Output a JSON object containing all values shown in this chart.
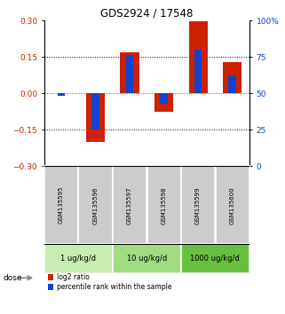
{
  "title": "GDS2924 / 17548",
  "samples": [
    "GSM135595",
    "GSM135596",
    "GSM135597",
    "GSM135598",
    "GSM135599",
    "GSM135600"
  ],
  "log2_ratio": [
    0.0,
    -0.2,
    0.17,
    -0.075,
    0.295,
    0.13
  ],
  "percentile_rank": [
    48,
    25,
    76,
    43,
    80,
    62
  ],
  "dose_groups": [
    {
      "label": "1 ug/kg/d",
      "color": "#c8edb0",
      "indices": [
        0,
        1
      ]
    },
    {
      "label": "10 ug/kg/d",
      "color": "#a0dc80",
      "indices": [
        2,
        3
      ]
    },
    {
      "label": "1000 ug/kg/d",
      "color": "#68c040",
      "indices": [
        4,
        5
      ]
    }
  ],
  "bar_color_red": "#cc2200",
  "bar_color_blue": "#1144cc",
  "ylim_left": [
    -0.3,
    0.3
  ],
  "ylim_right": [
    0,
    100
  ],
  "yticks_left": [
    -0.3,
    -0.15,
    0.0,
    0.15,
    0.3
  ],
  "yticks_right": [
    0,
    25,
    50,
    75,
    100
  ],
  "ytick_labels_right": [
    "0",
    "25",
    "50",
    "75",
    "100%"
  ],
  "hline_y": [
    0.15,
    -0.15
  ],
  "bar_width": 0.55,
  "blue_bar_width": 0.22,
  "sample_col_bg": "#cccccc",
  "dose_label": "dose",
  "legend_red": "log2 ratio",
  "legend_blue": "percentile rank within the sample"
}
